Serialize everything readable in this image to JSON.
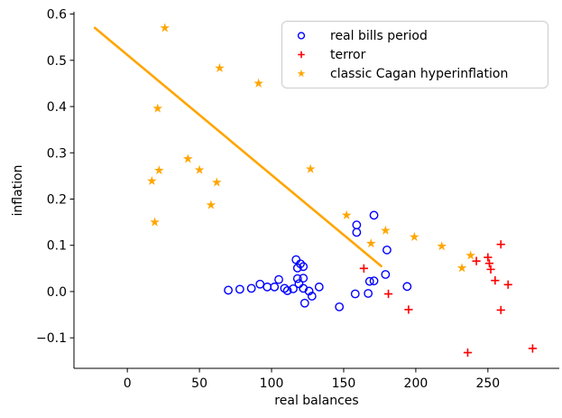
{
  "chart_data": {
    "type": "scatter",
    "title": "",
    "xlabel": "real balances",
    "ylabel": "inflation",
    "xlim": [
      -37,
      299.5
    ],
    "ylim": [
      -0.166,
      0.605
    ],
    "xticks": [
      0,
      50,
      100,
      150,
      200,
      250
    ],
    "yticks": [
      -0.1,
      0.0,
      0.1,
      0.2,
      0.3,
      0.4,
      0.5,
      0.6
    ],
    "grid": false,
    "legend_position": "upper right",
    "series": [
      {
        "name": "real bills period",
        "marker": "circle",
        "color": "#0000ff",
        "points": [
          [
            70,
            0.003
          ],
          [
            78,
            0.005
          ],
          [
            86,
            0.007
          ],
          [
            92,
            0.016
          ],
          [
            97,
            0.01
          ],
          [
            102,
            0.01
          ],
          [
            105,
            0.026
          ],
          [
            109,
            0.007
          ],
          [
            111,
            0.002
          ],
          [
            115,
            0.006
          ],
          [
            117,
            0.069
          ],
          [
            120,
            0.06
          ],
          [
            118,
            0.051
          ],
          [
            122,
            0.054
          ],
          [
            118,
            0.028
          ],
          [
            122,
            0.029
          ],
          [
            119,
            0.017
          ],
          [
            122,
            0.007
          ],
          [
            126,
            0.001
          ],
          [
            123,
            -0.025
          ],
          [
            128,
            -0.01
          ],
          [
            133,
            0.01
          ],
          [
            147,
            -0.033
          ],
          [
            158,
            -0.005
          ],
          [
            167,
            -0.004
          ],
          [
            168,
            0.022
          ],
          [
            171,
            0.023
          ],
          [
            179,
            0.037
          ],
          [
            180,
            0.09
          ],
          [
            159,
            0.144
          ],
          [
            159,
            0.128
          ],
          [
            171,
            0.165
          ],
          [
            194,
            0.011
          ]
        ]
      },
      {
        "name": "terror",
        "marker": "plus",
        "color": "#ff0000",
        "points": [
          [
            164,
            0.05
          ],
          [
            181,
            -0.005
          ],
          [
            195,
            -0.039
          ],
          [
            236,
            -0.132
          ],
          [
            242,
            0.066
          ],
          [
            250,
            0.074
          ],
          [
            251,
            0.061
          ],
          [
            252,
            0.048
          ],
          [
            255,
            0.024
          ],
          [
            259,
            0.102
          ],
          [
            259,
            -0.04
          ],
          [
            264,
            0.015
          ],
          [
            281,
            -0.123
          ]
        ]
      },
      {
        "name": "classic Cagan hyperinflation",
        "marker": "star",
        "color": "#ffa500",
        "points": [
          [
            26,
            0.57
          ],
          [
            64,
            0.483
          ],
          [
            91,
            0.45
          ],
          [
            21,
            0.396
          ],
          [
            42,
            0.287
          ],
          [
            50,
            0.263
          ],
          [
            22,
            0.262
          ],
          [
            17,
            0.239
          ],
          [
            62,
            0.236
          ],
          [
            127,
            0.265
          ],
          [
            58,
            0.187
          ],
          [
            19,
            0.15
          ],
          [
            152,
            0.165
          ],
          [
            179,
            0.132
          ],
          [
            169,
            0.104
          ],
          [
            199,
            0.118
          ],
          [
            218,
            0.098
          ],
          [
            238,
            0.078
          ],
          [
            232,
            0.051
          ]
        ]
      }
    ],
    "trend_line": {
      "color": "#ffa500",
      "from": [
        -22.5,
        0.57
      ],
      "to": [
        176,
        0.055
      ]
    }
  }
}
